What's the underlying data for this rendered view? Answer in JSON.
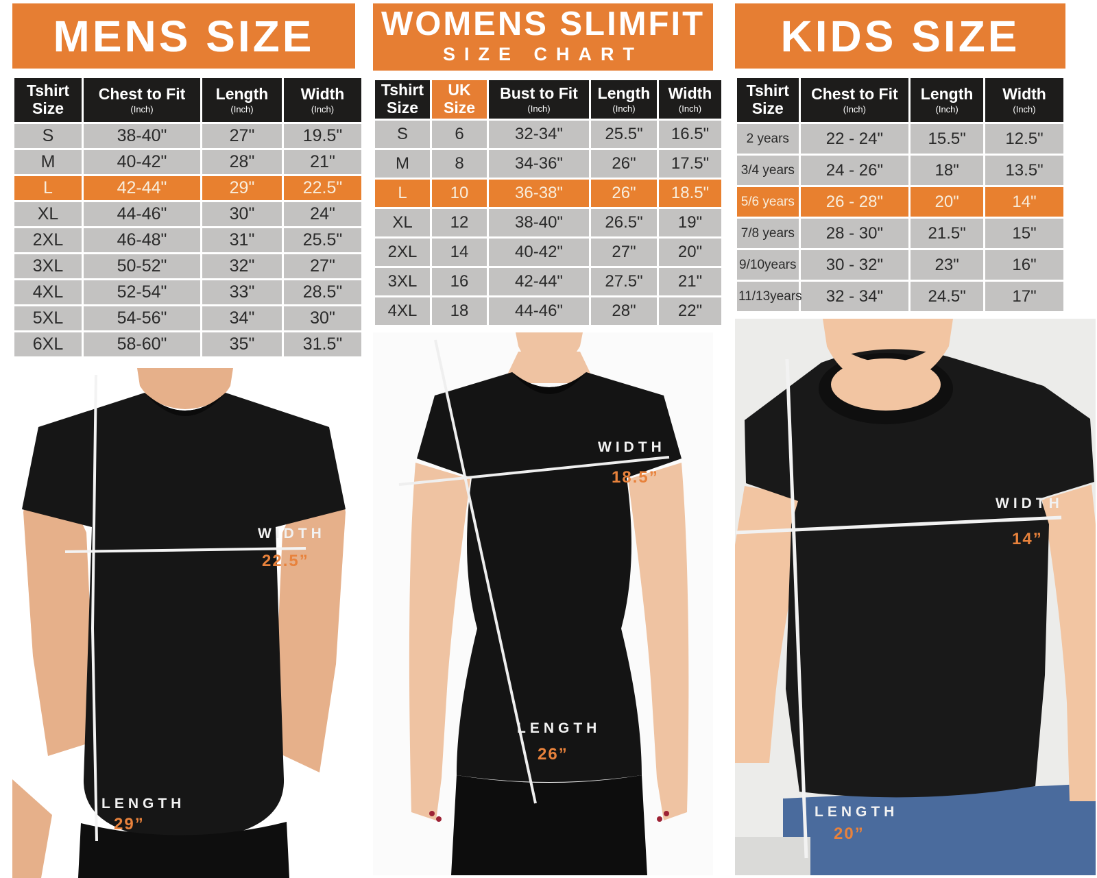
{
  "accent_color": "#E67E33",
  "table_header_color": "#1D1C1B",
  "table_row_color": "#C3C2C1",
  "panels": [
    {
      "id": "mens",
      "title": "MENS SIZE",
      "subtitle": "",
      "table": {
        "columns": [
          {
            "label": "Tshirt Size",
            "sub": "",
            "accent": false
          },
          {
            "label": "Chest to Fit",
            "sub": "(Inch)",
            "accent": false
          },
          {
            "label": "Length",
            "sub": "(Inch)",
            "accent": false
          },
          {
            "label": "Width",
            "sub": "(Inch)",
            "accent": false
          }
        ],
        "highlight_row": 2,
        "rows": [
          [
            "S",
            "38-40\"",
            "27\"",
            "19.5\""
          ],
          [
            "M",
            "40-42\"",
            "28\"",
            "21\""
          ],
          [
            "L",
            "42-44\"",
            "29\"",
            "22.5\""
          ],
          [
            "XL",
            "44-46\"",
            "30\"",
            "24\""
          ],
          [
            "2XL",
            "46-48\"",
            "31\"",
            "25.5\""
          ],
          [
            "3XL",
            "50-52\"",
            "32\"",
            "27\""
          ],
          [
            "4XL",
            "52-54\"",
            "33\"",
            "28.5\""
          ],
          [
            "5XL",
            "54-56\"",
            "34\"",
            "30\""
          ],
          [
            "6XL",
            "58-60\"",
            "35\"",
            "31.5\""
          ]
        ]
      },
      "annotations": {
        "width_label": "WIDTH",
        "width_value": "22.5”",
        "length_label": "LENGTH",
        "length_value": "29”"
      }
    },
    {
      "id": "womens",
      "title": "WOMENS SLIMFIT",
      "subtitle": "SIZE CHART",
      "table": {
        "columns": [
          {
            "label": "Tshirt Size",
            "sub": "",
            "accent": false
          },
          {
            "label": "UK Size",
            "sub": "",
            "accent": true
          },
          {
            "label": "Bust to Fit",
            "sub": "(Inch)",
            "accent": false
          },
          {
            "label": "Length",
            "sub": "(Inch)",
            "accent": false
          },
          {
            "label": "Width",
            "sub": "(Inch)",
            "accent": false
          }
        ],
        "highlight_row": 2,
        "rows": [
          [
            "S",
            "6",
            "32-34\"",
            "25.5\"",
            "16.5\""
          ],
          [
            "M",
            "8",
            "34-36\"",
            "26\"",
            "17.5\""
          ],
          [
            "L",
            "10",
            "36-38\"",
            "26\"",
            "18.5\""
          ],
          [
            "XL",
            "12",
            "38-40\"",
            "26.5\"",
            "19\""
          ],
          [
            "2XL",
            "14",
            "40-42\"",
            "27\"",
            "20\""
          ],
          [
            "3XL",
            "16",
            "42-44\"",
            "27.5\"",
            "21\""
          ],
          [
            "4XL",
            "18",
            "44-46\"",
            "28\"",
            "22\""
          ]
        ]
      },
      "annotations": {
        "width_label": "WIDTH",
        "width_value": "18.5”",
        "length_label": "LENGTH",
        "length_value": "26”"
      }
    },
    {
      "id": "kids",
      "title": "KIDS SIZE",
      "subtitle": "",
      "table": {
        "columns": [
          {
            "label": "Tshirt Size",
            "sub": "",
            "accent": false
          },
          {
            "label": "Chest to Fit",
            "sub": "(Inch)",
            "accent": false
          },
          {
            "label": "Length",
            "sub": "(Inch)",
            "accent": false
          },
          {
            "label": "Width",
            "sub": "(Inch)",
            "accent": false
          }
        ],
        "highlight_row": 2,
        "rows": [
          [
            "2 years",
            "22 - 24\"",
            "15.5\"",
            "12.5\""
          ],
          [
            "3/4 years",
            "24 - 26\"",
            "18\"",
            "13.5\""
          ],
          [
            "5/6 years",
            "26 - 28\"",
            "20\"",
            "14\""
          ],
          [
            "7/8 years",
            "28 - 30\"",
            "21.5\"",
            "15\""
          ],
          [
            "9/10years",
            "30 - 32\"",
            "23\"",
            "16\""
          ],
          [
            "11/13years",
            "32 - 34\"",
            "24.5\"",
            "17\""
          ]
        ]
      },
      "annotations": {
        "width_label": "WIDTH",
        "width_value": "14”",
        "length_label": "LENGTH",
        "length_value": "20”"
      }
    }
  ]
}
